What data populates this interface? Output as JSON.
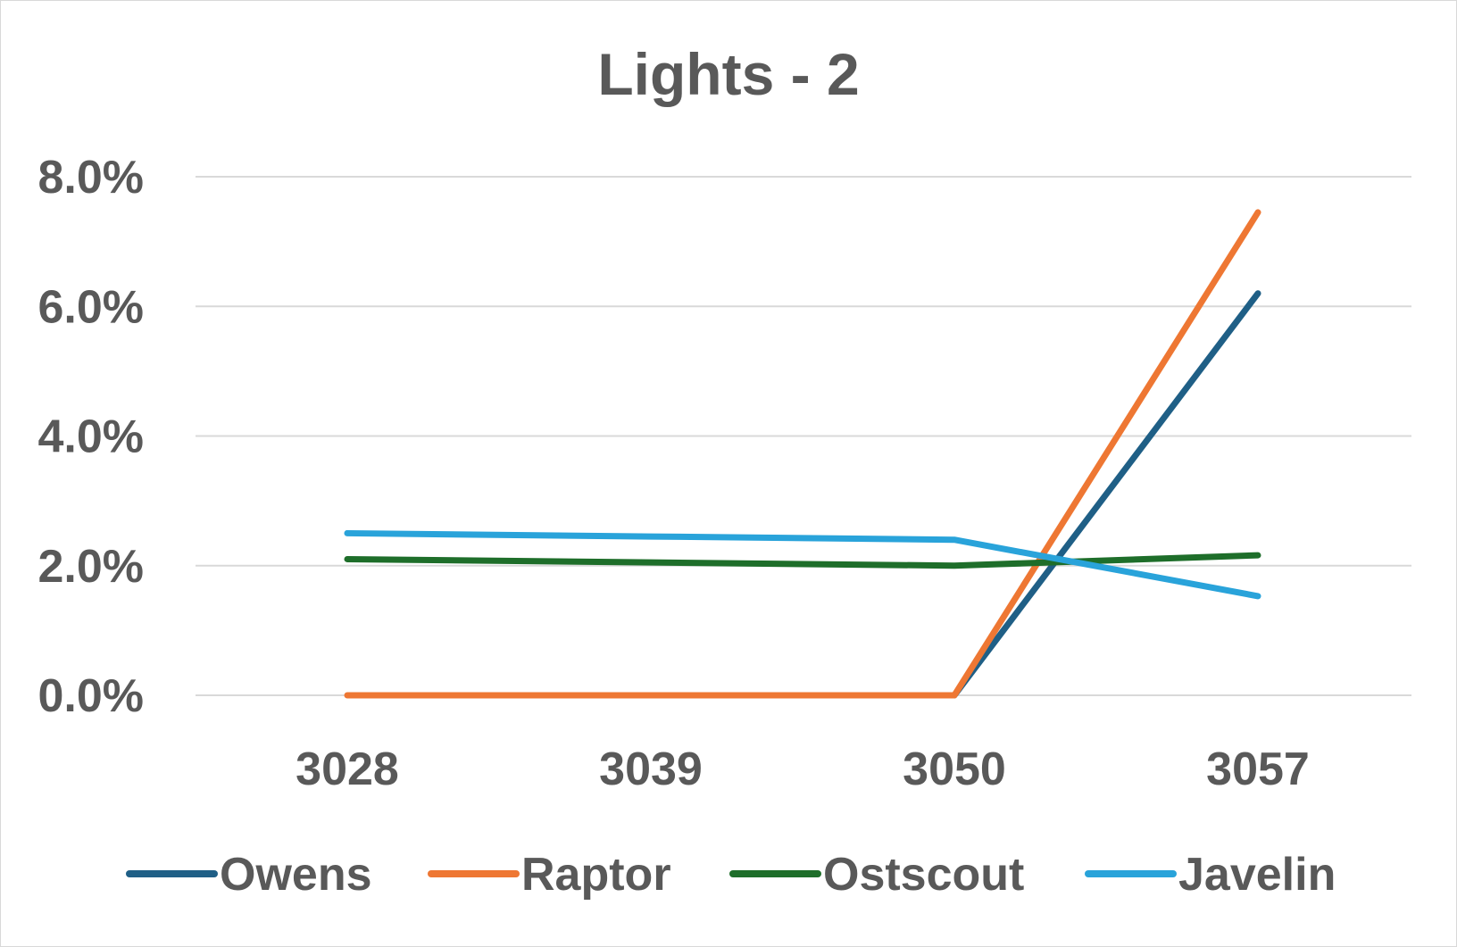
{
  "chart_data": {
    "type": "line",
    "title": "Lights - 2",
    "xlabel": "",
    "ylabel": "",
    "categories": [
      "3028",
      "3039",
      "3050",
      "3057"
    ],
    "ylim": [
      0,
      0.08
    ],
    "yticks": [
      0,
      0.02,
      0.04,
      0.06,
      0.08
    ],
    "ytick_labels": [
      "0.0%",
      "2.0%",
      "4.0%",
      "6.0%",
      "8.0%"
    ],
    "grid": true,
    "legend_position": "bottom",
    "series": [
      {
        "name": "Owens",
        "color": "#1f5f86",
        "values": [
          null,
          null,
          0.0,
          0.062
        ]
      },
      {
        "name": "Raptor",
        "color": "#ee7733",
        "values": [
          0.0,
          0.0,
          0.0,
          0.0745
        ]
      },
      {
        "name": "Ostscout",
        "color": "#1e6e2a",
        "values": [
          0.021,
          0.0205,
          0.02,
          0.0216
        ]
      },
      {
        "name": "Javelin",
        "color": "#29a3da",
        "values": [
          0.025,
          0.0245,
          0.024,
          0.0153
        ]
      }
    ]
  }
}
